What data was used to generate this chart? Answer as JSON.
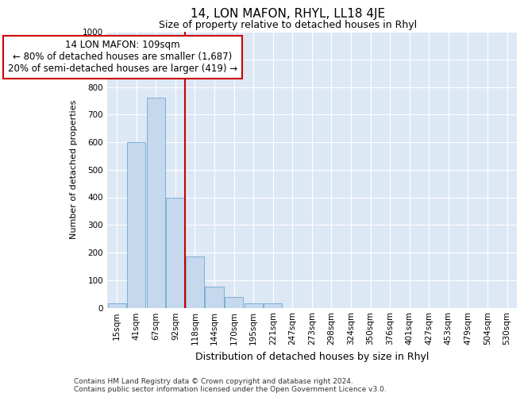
{
  "title": "14, LON MAFON, RHYL, LL18 4JE",
  "subtitle": "Size of property relative to detached houses in Rhyl",
  "xlabel_bottom": "Distribution of detached houses by size in Rhyl",
  "ylabel": "Number of detached properties",
  "footnote": "Contains HM Land Registry data © Crown copyright and database right 2024.\nContains public sector information licensed under the Open Government Licence v3.0.",
  "categories": [
    "15sqm",
    "41sqm",
    "67sqm",
    "92sqm",
    "118sqm",
    "144sqm",
    "170sqm",
    "195sqm",
    "221sqm",
    "247sqm",
    "273sqm",
    "298sqm",
    "324sqm",
    "350sqm",
    "376sqm",
    "401sqm",
    "427sqm",
    "453sqm",
    "479sqm",
    "504sqm",
    "530sqm"
  ],
  "values": [
    15,
    600,
    760,
    400,
    185,
    75,
    38,
    15,
    15,
    0,
    0,
    0,
    0,
    0,
    0,
    0,
    0,
    0,
    0,
    0,
    0
  ],
  "bar_color": "#c5d8ee",
  "bar_edge_color": "#7bafd4",
  "background_color": "#dde8f5",
  "vline_color": "#cc0000",
  "annotation_text": "14 LON MAFON: 109sqm\n← 80% of detached houses are smaller (1,687)\n20% of semi-detached houses are larger (419) →",
  "annotation_box_color": "#ffffff",
  "annotation_border_color": "#cc0000",
  "ylim": [
    0,
    1000
  ],
  "yticks": [
    0,
    100,
    200,
    300,
    400,
    500,
    600,
    700,
    800,
    900,
    1000
  ],
  "title_fontsize": 11,
  "subtitle_fontsize": 9,
  "ylabel_fontsize": 8,
  "xlabel_fontsize": 9,
  "tick_fontsize": 7.5,
  "footnote_fontsize": 6.5
}
